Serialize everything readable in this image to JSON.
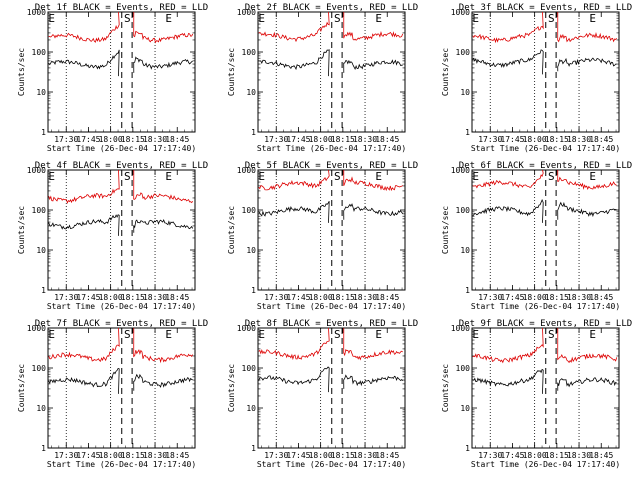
{
  "colors": {
    "events": "#000000",
    "lld": "#dd0000",
    "background": "#ffffff"
  },
  "chart_data": [
    {
      "type": "line",
      "title": "Det 1f BLACK = Events, RED = LLD",
      "xlabel": "Start Time (26-Dec-04 17:17:40)",
      "ylabel": "Counts/sec",
      "yscale": "log",
      "ylim": [
        1,
        1000
      ],
      "yticks": [
        "1",
        "10",
        "100",
        "1000"
      ],
      "xticks": [
        "17:30",
        "17:45",
        "18:00",
        "18:15",
        "18:30",
        "18:45"
      ],
      "markers": [
        "E",
        "S",
        "E"
      ],
      "series": [
        {
          "name": "BLACK = Events",
          "level": 50,
          "t": [
            17.3,
            17.5,
            17.7,
            17.9,
            18.0,
            18.05
          ],
          "v": [
            52,
            48,
            50,
            53,
            58,
            62
          ]
        },
        {
          "name": "RED = LLD",
          "level": 230,
          "t": [
            17.3,
            17.5,
            17.7,
            17.9,
            18.0,
            18.05
          ],
          "v": [
            240,
            220,
            230,
            245,
            300,
            420
          ]
        }
      ]
    },
    {
      "type": "line",
      "title": "Det 2f BLACK = Events, RED = LLD",
      "xlabel": "Start Time (26-Dec-04 17:17:40)",
      "ylabel": "Counts/sec",
      "yscale": "log",
      "ylim": [
        1,
        1000
      ],
      "yticks": [
        "1",
        "10",
        "100",
        "1000"
      ],
      "xticks": [
        "17:30",
        "17:45",
        "18:00",
        "18:15",
        "18:30",
        "18:45"
      ],
      "markers": [
        "E",
        "S",
        "E"
      ],
      "series": [
        {
          "name": "BLACK = Events",
          "level": 50
        },
        {
          "name": "RED = LLD",
          "level": 250
        }
      ]
    },
    {
      "type": "line",
      "title": "Det 3f BLACK = Events, RED = LLD",
      "xlabel": "Start Time (26-Dec-04 17:17:40)",
      "ylabel": "Counts/sec",
      "yscale": "log",
      "ylim": [
        1,
        1000
      ],
      "yticks": [
        "1",
        "10",
        "100",
        "1000"
      ],
      "xticks": [
        "17:30",
        "17:45",
        "18:00",
        "18:15",
        "18:30",
        "18:45"
      ],
      "markers": [
        "E",
        "S",
        "E"
      ],
      "series": [
        {
          "name": "BLACK = Events",
          "level": 55
        },
        {
          "name": "RED = LLD",
          "level": 230
        }
      ]
    },
    {
      "type": "line",
      "title": "Det 4f BLACK = Events, RED = LLD",
      "xlabel": "Start Time (26-Dec-04 17:17:40)",
      "ylabel": "Counts/sec",
      "yscale": "log",
      "ylim": [
        1,
        1000
      ],
      "yticks": [
        "1",
        "10",
        "100",
        "1000"
      ],
      "xticks": [
        "17:30",
        "17:45",
        "18:00",
        "18:15",
        "18:30",
        "18:45"
      ],
      "markers": [
        "E",
        "S",
        "E"
      ],
      "series": [
        {
          "name": "BLACK = Events",
          "level": 45
        },
        {
          "name": "RED = LLD",
          "level": 200
        }
      ]
    },
    {
      "type": "line",
      "title": "Det 5f BLACK = Events, RED = LLD",
      "xlabel": "Start Time (26-Dec-04 17:17:40)",
      "ylabel": "Counts/sec",
      "yscale": "log",
      "ylim": [
        1,
        1000
      ],
      "yticks": [
        "1",
        "10",
        "100",
        "1000"
      ],
      "xticks": [
        "17:30",
        "17:45",
        "18:00",
        "18:15",
        "18:30",
        "18:45"
      ],
      "markers": [
        "E",
        "S",
        "E"
      ],
      "series": [
        {
          "name": "BLACK = Events",
          "level": 95
        },
        {
          "name": "RED = LLD",
          "level": 420
        }
      ]
    },
    {
      "type": "line",
      "title": "Det 6f BLACK = Events, RED = LLD",
      "xlabel": "Start Time (26-Dec-04 17:17:40)",
      "ylabel": "Counts/sec",
      "yscale": "log",
      "ylim": [
        1,
        1000
      ],
      "yticks": [
        "1",
        "10",
        "100",
        "1000"
      ],
      "xticks": [
        "17:30",
        "17:45",
        "18:00",
        "18:15",
        "18:30",
        "18:45"
      ],
      "markers": [
        "E",
        "S",
        "E"
      ],
      "series": [
        {
          "name": "BLACK = Events",
          "level": 95
        },
        {
          "name": "RED = LLD",
          "level": 430
        }
      ]
    },
    {
      "type": "line",
      "title": "Det 7f BLACK = Events, RED = LLD",
      "xlabel": "Start Time (26-Dec-04 17:17:40)",
      "ylabel": "Counts/sec",
      "yscale": "log",
      "ylim": [
        1,
        1000
      ],
      "yticks": [
        "1",
        "10",
        "100",
        "1000"
      ],
      "xticks": [
        "17:30",
        "17:45",
        "18:00",
        "18:15",
        "18:30",
        "18:45"
      ],
      "markers": [
        "E",
        "S",
        "E"
      ],
      "series": [
        {
          "name": "BLACK = Events",
          "level": 45
        },
        {
          "name": "RED = LLD",
          "level": 190
        }
      ]
    },
    {
      "type": "line",
      "title": "Det 8f BLACK = Events, RED = LLD",
      "xlabel": "Start Time (26-Dec-04 17:17:40)",
      "ylabel": "Counts/sec",
      "yscale": "log",
      "ylim": [
        1,
        1000
      ],
      "yticks": [
        "1",
        "10",
        "100",
        "1000"
      ],
      "xticks": [
        "17:30",
        "17:45",
        "18:00",
        "18:15",
        "18:30",
        "18:45"
      ],
      "markers": [
        "E",
        "S",
        "E"
      ],
      "series": [
        {
          "name": "BLACK = Events",
          "level": 50
        },
        {
          "name": "RED = LLD",
          "level": 220
        }
      ]
    },
    {
      "type": "line",
      "title": "Det 9f BLACK = Events, RED = LLD",
      "xlabel": "Start Time (26-Dec-04 17:17:40)",
      "ylabel": "Counts/sec",
      "yscale": "log",
      "ylim": [
        1,
        1000
      ],
      "yticks": [
        "1",
        "10",
        "100",
        "1000"
      ],
      "xticks": [
        "17:30",
        "17:45",
        "18:00",
        "18:15",
        "18:30",
        "18:45"
      ],
      "markers": [
        "E",
        "S",
        "E"
      ],
      "series": [
        {
          "name": "BLACK = Events",
          "level": 45
        },
        {
          "name": "RED = LLD",
          "level": 180
        }
      ]
    }
  ]
}
